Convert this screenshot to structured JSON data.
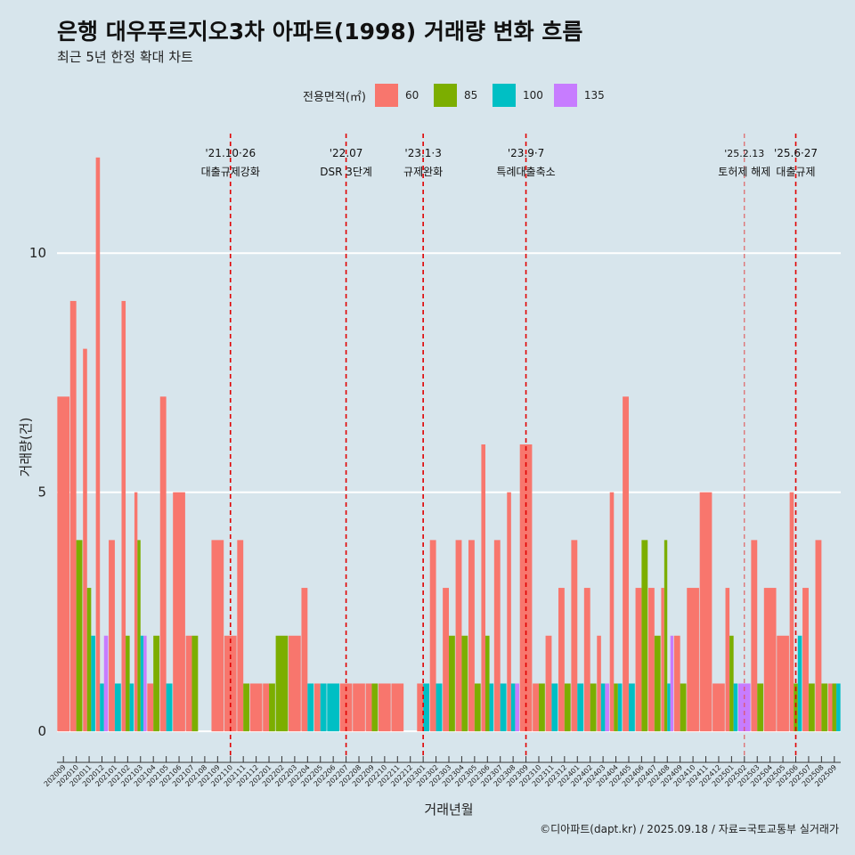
{
  "title": "은행 대우푸르지오3차 아파트(1998) 거래량 변화 흐름",
  "subtitle": "최근 5년 한정 확대 차트",
  "caption": "©디아파트(dapt.kr) / 2025.09.18 / 자료=국토교통부 실거래가",
  "chart_data": {
    "type": "bar",
    "xlabel": "거래년월",
    "ylabel": "거래량(건)",
    "ylim": [
      -0.5,
      12.5
    ],
    "yticks": [
      0,
      5,
      10
    ],
    "grid": true,
    "legend_title": "전용면적(㎡)",
    "legend_position": "top",
    "categories": [
      "202009",
      "202010",
      "202011",
      "202012",
      "202101",
      "202102",
      "202103",
      "202104",
      "202105",
      "202106",
      "202107",
      "202108",
      "202109",
      "202110",
      "202111",
      "202112",
      "202201",
      "202202",
      "202203",
      "202204",
      "202205",
      "202206",
      "202207",
      "202208",
      "202209",
      "202210",
      "202211",
      "202212",
      "202301",
      "202302",
      "202303",
      "202304",
      "202305",
      "202306",
      "202307",
      "202308",
      "202309",
      "202310",
      "202311",
      "202312",
      "202401",
      "202402",
      "202403",
      "202404",
      "202405",
      "202406",
      "202407",
      "202408",
      "202409",
      "202410",
      "202411",
      "202412",
      "202501",
      "202502",
      "202503",
      "202504",
      "202505",
      "202506",
      "202507",
      "202508",
      "202509"
    ],
    "series": [
      {
        "name": "60",
        "color": "#F8766D",
        "values": [
          7,
          9,
          8,
          12,
          4,
          9,
          5,
          1,
          7,
          5,
          2,
          0,
          4,
          2,
          4,
          1,
          1,
          0,
          2,
          3,
          1,
          0,
          1,
          1,
          1,
          1,
          1,
          0,
          1,
          4,
          3,
          4,
          4,
          6,
          4,
          5,
          6,
          1,
          2,
          3,
          4,
          3,
          2,
          5,
          7,
          3,
          3,
          3,
          2,
          3,
          5,
          1,
          3,
          0,
          4,
          3,
          2,
          5,
          3,
          4,
          1
        ]
      },
      {
        "name": "85",
        "color": "#7CAE00",
        "values": [
          0,
          4,
          3,
          0,
          0,
          2,
          4,
          2,
          0,
          0,
          2,
          0,
          0,
          0,
          1,
          0,
          1,
          2,
          0,
          0,
          0,
          0,
          0,
          0,
          1,
          0,
          0,
          0,
          0,
          0,
          2,
          2,
          1,
          2,
          0,
          0,
          0,
          1,
          0,
          1,
          0,
          1,
          0,
          1,
          0,
          4,
          2,
          4,
          1,
          0,
          0,
          0,
          2,
          0,
          1,
          0,
          0,
          1,
          1,
          1,
          1
        ]
      },
      {
        "name": "100",
        "color": "#00BFC4",
        "values": [
          0,
          0,
          2,
          1,
          1,
          1,
          2,
          0,
          1,
          0,
          0,
          0,
          0,
          0,
          0,
          0,
          0,
          0,
          0,
          1,
          1,
          1,
          0,
          0,
          0,
          0,
          0,
          0,
          1,
          1,
          0,
          0,
          0,
          1,
          1,
          1,
          0,
          0,
          1,
          0,
          1,
          0,
          1,
          1,
          1,
          0,
          0,
          1,
          0,
          0,
          0,
          0,
          1,
          0,
          0,
          0,
          0,
          2,
          0,
          0,
          1
        ]
      },
      {
        "name": "135",
        "color": "#C77CFF",
        "values": [
          0,
          0,
          0,
          2,
          0,
          0,
          2,
          0,
          0,
          0,
          0,
          0,
          0,
          0,
          0,
          0,
          0,
          0,
          0,
          0,
          0,
          0,
          0,
          0,
          0,
          0,
          0,
          0,
          0,
          0,
          0,
          0,
          0,
          0,
          0,
          1,
          0,
          0,
          0,
          0,
          0,
          0,
          1,
          0,
          0,
          0,
          0,
          2,
          0,
          0,
          0,
          0,
          0,
          1,
          0,
          0,
          0,
          0,
          0,
          0,
          0
        ]
      }
    ],
    "events": [
      {
        "category": "202110",
        "date": "'21.10·26",
        "label": "대출규제강화",
        "style": "bold"
      },
      {
        "category": "202207",
        "date": "'22.07",
        "label": "DSR 3단계",
        "style": "bold"
      },
      {
        "category": "202301",
        "date": "'23.1·3",
        "label": "규제완화",
        "style": "bold"
      },
      {
        "category": "202309",
        "date": "'23.9·7",
        "label": "특례대출축소",
        "style": "bold"
      },
      {
        "category": "202502",
        "date": "'25.2.13",
        "label": "토허제 해제",
        "style": "thin"
      },
      {
        "category": "202506",
        "date": "'25.6·27",
        "label": "대출규제",
        "style": "bold"
      }
    ]
  }
}
